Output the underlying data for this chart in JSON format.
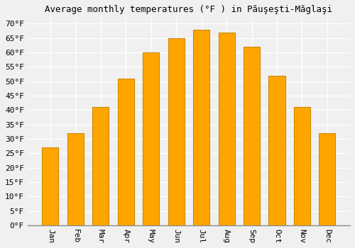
{
  "title": "Average monthly temperatures (°F ) in Păuşeşti-Măglaşi",
  "months": [
    "Jan",
    "Feb",
    "Mar",
    "Apr",
    "May",
    "Jun",
    "Jul",
    "Aug",
    "Sep",
    "Oct",
    "Nov",
    "Dec"
  ],
  "values": [
    27,
    32,
    41,
    51,
    60,
    65,
    68,
    67,
    62,
    52,
    41,
    32
  ],
  "bar_color": "#FFA500",
  "bar_edge_color": "#CC8800",
  "background_color": "#F0F0F0",
  "grid_color": "#FFFFFF",
  "ytick_min": 0,
  "ytick_max": 70,
  "ytick_step": 5,
  "title_fontsize": 9,
  "tick_fontsize": 8,
  "ylim_max": 72
}
